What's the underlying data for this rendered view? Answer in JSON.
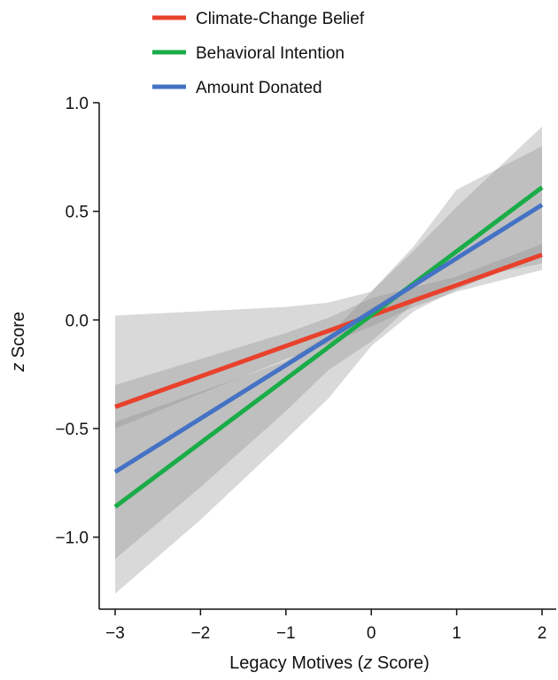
{
  "chart_data": {
    "type": "line",
    "xlabel": "Legacy Motives (z Score)",
    "xlabel_parts": [
      {
        "text": "Legacy Motives (",
        "italic": false
      },
      {
        "text": "z",
        "italic": true
      },
      {
        "text": " Score)",
        "italic": false
      }
    ],
    "ylabel": "z Score",
    "ylabel_parts": [
      {
        "text": "z",
        "italic": true
      },
      {
        "text": " Score",
        "italic": false
      }
    ],
    "xlim": [
      -3,
      2
    ],
    "ylim": [
      -1.25,
      1.0
    ],
    "x_ticks": [
      -3,
      -2,
      -1,
      0,
      1,
      2
    ],
    "x_tick_labels": [
      "−3",
      "−2",
      "−1",
      "0",
      "1",
      "2"
    ],
    "y_ticks": [
      1.0,
      0.5,
      0.0,
      -0.5,
      -1.0
    ],
    "y_tick_labels": [
      "1.0",
      "0.5",
      "0.0",
      "−0.5",
      "−1.0"
    ],
    "grid": false,
    "legend_position": "top",
    "band_color": "#8c8c8c",
    "series": [
      {
        "name": "Climate-Change Belief",
        "color": "#e8412c",
        "x": [
          -3,
          2
        ],
        "y": [
          -0.4,
          0.3
        ],
        "ci_x": [
          -3,
          -2,
          -1,
          -0.5,
          0,
          0.5,
          1,
          2
        ],
        "ci_lower": [
          -0.5,
          -0.34,
          -0.18,
          -0.11,
          -0.03,
          0.06,
          0.13,
          0.23
        ],
        "ci_upper": [
          -0.3,
          -0.18,
          -0.06,
          0.01,
          0.1,
          0.15,
          0.2,
          0.35
        ]
      },
      {
        "name": "Behavioral Intention",
        "color": "#1aac48",
        "x": [
          -3,
          2
        ],
        "y": [
          -0.86,
          0.61
        ],
        "ci_x": [
          -3,
          -2,
          -1,
          -0.5,
          0,
          0.5,
          1,
          2
        ],
        "ci_lower": [
          -1.26,
          -0.92,
          -0.55,
          -0.36,
          -0.12,
          0.04,
          0.14,
          0.3
        ],
        "ci_upper": [
          -0.47,
          -0.33,
          -0.19,
          -0.07,
          0.13,
          0.32,
          0.52,
          0.89
        ]
      },
      {
        "name": "Amount Donated",
        "color": "#4472c4",
        "x": [
          -3,
          2
        ],
        "y": [
          -0.7,
          0.53
        ],
        "ci_x": [
          -3,
          -2,
          -1,
          -0.5,
          0,
          0.5,
          1,
          2
        ],
        "ci_lower": [
          -1.1,
          -0.77,
          -0.42,
          -0.23,
          -0.1,
          0.08,
          0.18,
          0.26
        ],
        "ci_upper": [
          0.02,
          0.04,
          0.06,
          0.08,
          0.13,
          0.34,
          0.6,
          0.8
        ]
      }
    ]
  }
}
